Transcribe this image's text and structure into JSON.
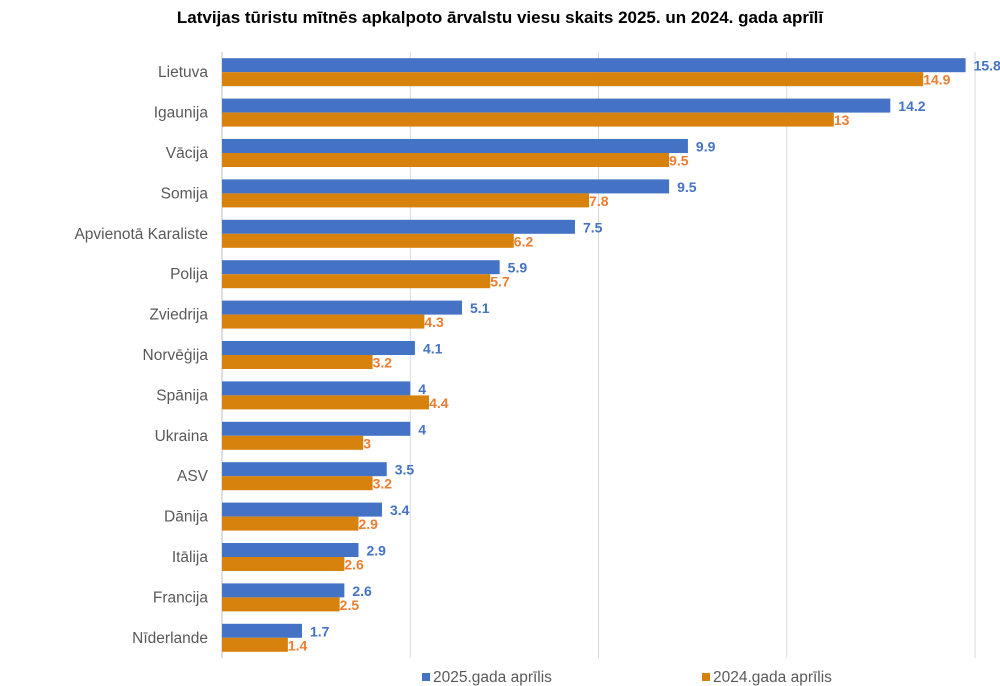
{
  "chart_data": {
    "type": "bar",
    "orientation": "horizontal",
    "title": "Latvijas tūristu mītnēs apkalpoto ārvalstu viesu skaits 2025. un 2024. gada aprīlī",
    "categories": [
      "Lietuva",
      "Igaunija",
      "Vācija",
      "Somija",
      "Apvienotā Karaliste",
      "Polija",
      "Zviedrija",
      "Norvēģija",
      "Spānija",
      "Ukraina",
      "ASV",
      "Dānija",
      "Itālija",
      "Francija",
      "Nīderlande"
    ],
    "series": [
      {
        "name": "2025.gada aprīlis",
        "color": "#4472c4",
        "label_color": "#4472c4",
        "values": [
          15.8,
          14.2,
          9.9,
          9.5,
          7.5,
          5.9,
          5.1,
          4.1,
          4,
          4,
          3.5,
          3.4,
          2.9,
          2.6,
          1.7
        ]
      },
      {
        "name": "2024.gada aprīlis",
        "color": "#d8820e",
        "label_color": "#ed7d31",
        "values": [
          14.9,
          13,
          9.5,
          7.8,
          6.2,
          5.7,
          4.3,
          3.2,
          4.4,
          3,
          3.2,
          2.9,
          2.6,
          2.5,
          1.4
        ]
      }
    ],
    "xlim": [
      0,
      16
    ],
    "grid": true,
    "legend_position": "bottom"
  }
}
